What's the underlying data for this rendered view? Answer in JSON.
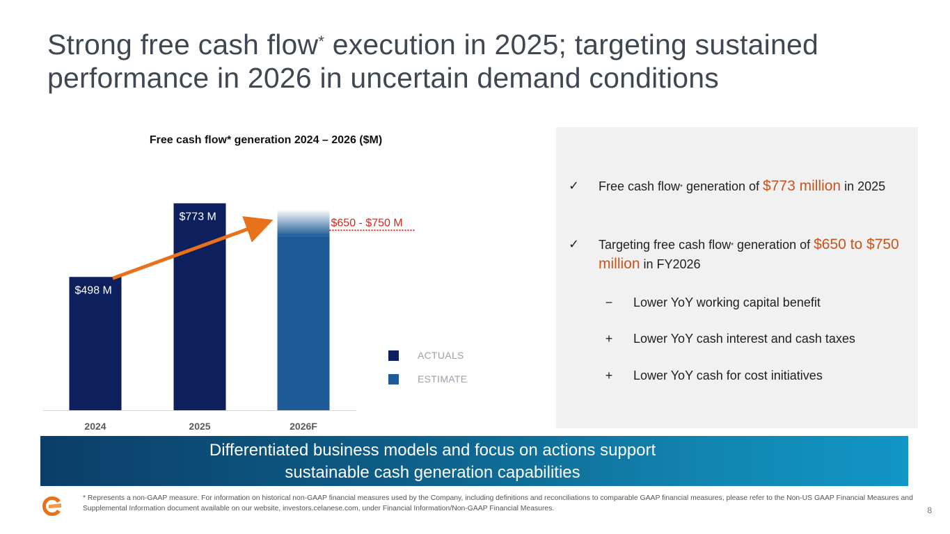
{
  "title": {
    "line1_pre": "Strong free cash flow",
    "line1_sup": "*",
    "line1_post": " execution in 2025; targeting sustained",
    "line2": "performance in 2026 in uncertain demand conditions"
  },
  "colors": {
    "actual": "#0d1f5c",
    "estimate": "#1f5b96",
    "accent_orange": "#e8711c",
    "range_red": "#d9261c",
    "highlight": "#c9541a"
  },
  "chart_data": {
    "type": "bar",
    "title": "Free cash flow* generation 2024 – 2026 ($M)",
    "categories": [
      "2024",
      "2025",
      "2026F"
    ],
    "values": [
      498,
      773,
      750
    ],
    "value_labels": [
      "$498 M",
      "$773 M",
      ""
    ],
    "series_types": [
      "actual",
      "actual",
      "estimate"
    ],
    "estimate_range": {
      "low": 650,
      "high": 750,
      "label": "$650 - $750 M"
    },
    "ylim": [
      0,
      800
    ],
    "xlabel": "",
    "ylabel": "",
    "legend": [
      {
        "name": "ACTUALS",
        "color": "#0d1f5c"
      },
      {
        "name": "ESTIMATE",
        "color": "#1f5b96"
      }
    ],
    "trend_arrow": {
      "from": "2024",
      "to": "2026F"
    }
  },
  "panel": {
    "bullet1": {
      "check": "✓",
      "pre": "Free cash flow",
      "sup": "*",
      "mid": " generation of ",
      "highlight": "$773 million",
      "post": " in 2025"
    },
    "bullet2": {
      "check": "✓",
      "pre": "Targeting free cash flow",
      "sup": "*",
      "mid": " generation of ",
      "highlight": "$650 to $750 million",
      "post": " in FY2026"
    },
    "subitems": [
      {
        "symbol": "−",
        "text": "Lower YoY working capital benefit"
      },
      {
        "symbol": "+",
        "text": "Lower YoY cash interest and cash taxes"
      },
      {
        "symbol": "+",
        "text": "Lower YoY cash for cost initiatives"
      }
    ]
  },
  "banner": {
    "line1": "Differentiated business models and focus on actions support",
    "line2": "sustainable cash generation capabilities"
  },
  "footnote": "* Represents a non-GAAP measure. For information on historical non-GAAP financial measures used by the Company, including definitions and reconciliations to comparable GAAP financial measures, please refer to the Non-US GAAP Financial Measures and Supplemental Information document available on our website, investors.celanese.com, under Financial Information/Non-GAAP Financial Measures.",
  "page_number": "8",
  "logo_icon": "celanese-logo-icon"
}
